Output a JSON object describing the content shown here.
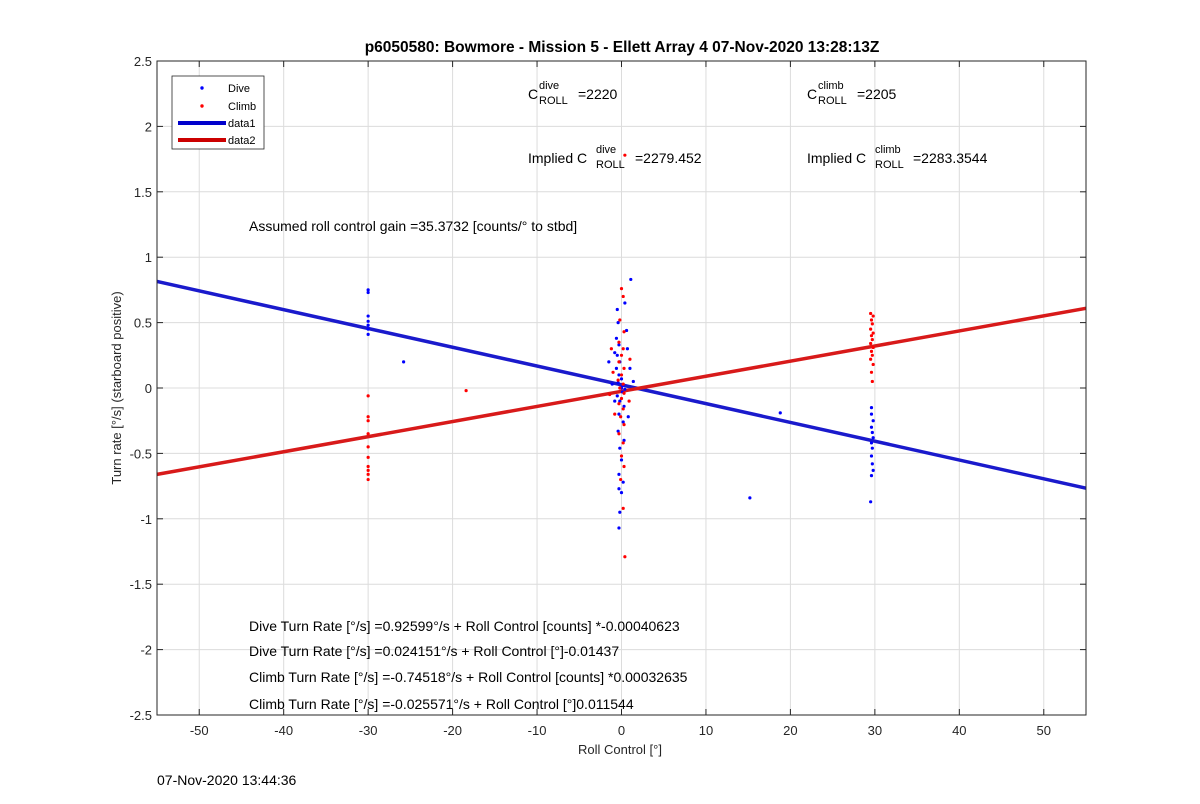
{
  "chart_data": {
    "type": "scatter",
    "title": "p6050580: Bowmore - Mission 5 - Ellett Array 4 07-Nov-2020 13:28:13Z",
    "xlabel": "Roll Control [°]",
    "ylabel": "Turn rate [°/s] (starboard positive)",
    "xlim": [
      -55,
      55
    ],
    "ylim": [
      -2.5,
      2.5
    ],
    "xticks": [
      -50,
      -40,
      -30,
      -20,
      -10,
      0,
      10,
      20,
      30,
      40,
      50
    ],
    "yticks": [
      -2.5,
      -2,
      -1.5,
      -1,
      -0.5,
      0,
      0.5,
      1,
      1.5,
      2,
      2.5
    ],
    "grid": true,
    "legend_position": "top-left",
    "legend": [
      {
        "name": "Dive",
        "kind": "marker",
        "color": "#0000ff"
      },
      {
        "name": "Climb",
        "kind": "marker",
        "color": "#ff0000"
      },
      {
        "name": "data1",
        "kind": "line",
        "color": "#0000cc"
      },
      {
        "name": "data2",
        "kind": "line",
        "color": "#cc0000"
      }
    ],
    "lines": [
      {
        "name": "data1",
        "color": "#1a1acc",
        "slope": -0.01437,
        "intercept": 0.024151
      },
      {
        "name": "data2",
        "color": "#d81a1a",
        "slope": 0.011544,
        "intercept": -0.025571
      }
    ],
    "series": [
      {
        "name": "Dive",
        "color": "#0000ff",
        "points": [
          [
            -30,
            0.75
          ],
          [
            -30,
            0.73
          ],
          [
            -30,
            0.55
          ],
          [
            -30,
            0.51
          ],
          [
            -30,
            0.48
          ],
          [
            -30,
            0.45
          ],
          [
            -30,
            0.41
          ],
          [
            -25.8,
            0.2
          ],
          [
            -0.8,
            0.27
          ],
          [
            -0.5,
            0.6
          ],
          [
            -0.4,
            0.5
          ],
          [
            -0.6,
            0.38
          ],
          [
            -0.3,
            0.33
          ],
          [
            -0.5,
            0.25
          ],
          [
            -0.2,
            0.2
          ],
          [
            -0.6,
            0.15
          ],
          [
            -0.3,
            0.1
          ],
          [
            0,
            0.07
          ],
          [
            -0.4,
            0.04
          ],
          [
            0.2,
            0.02
          ],
          [
            0,
            0
          ],
          [
            0.4,
            -0.01
          ],
          [
            0.1,
            -0.03
          ],
          [
            -0.5,
            -0.06
          ],
          [
            -0.2,
            -0.1
          ],
          [
            0.3,
            -0.14
          ],
          [
            -0.3,
            -0.2
          ],
          [
            0.2,
            -0.26
          ],
          [
            -0.4,
            -0.33
          ],
          [
            0.3,
            -0.4
          ],
          [
            -0.2,
            -0.46
          ],
          [
            0,
            -0.55
          ],
          [
            -0.3,
            -0.66
          ],
          [
            0.2,
            -0.72
          ],
          [
            -0.3,
            -0.77
          ],
          [
            0,
            -0.8
          ],
          [
            -0.2,
            -0.95
          ],
          [
            -0.3,
            -1.07
          ],
          [
            0.4,
            0.65
          ],
          [
            1.1,
            0.83
          ],
          [
            0.6,
            0.44
          ],
          [
            0.7,
            0.3
          ],
          [
            1,
            0.15
          ],
          [
            1.4,
            0.05
          ],
          [
            -1.5,
            0.2
          ],
          [
            -1.1,
            0.03
          ],
          [
            -0.8,
            -0.1
          ],
          [
            0.8,
            -0.22
          ],
          [
            15.2,
            -0.84
          ],
          [
            18.8,
            -0.19
          ],
          [
            29.6,
            -0.15
          ],
          [
            29.6,
            -0.2
          ],
          [
            29.8,
            -0.25
          ],
          [
            29.6,
            -0.3
          ],
          [
            29.7,
            -0.34
          ],
          [
            29.8,
            -0.38
          ],
          [
            29.6,
            -0.42
          ],
          [
            29.7,
            -0.46
          ],
          [
            29.6,
            -0.52
          ],
          [
            29.7,
            -0.58
          ],
          [
            29.8,
            -0.63
          ],
          [
            29.6,
            -0.67
          ],
          [
            29.5,
            -0.87
          ]
        ]
      },
      {
        "name": "Climb",
        "color": "#ff0000",
        "points": [
          [
            -30,
            -0.06
          ],
          [
            -30,
            -0.22
          ],
          [
            -30,
            -0.25
          ],
          [
            -30,
            -0.35
          ],
          [
            -30,
            -0.45
          ],
          [
            -30,
            -0.53
          ],
          [
            -30,
            -0.6
          ],
          [
            -30,
            -0.63
          ],
          [
            -30,
            -0.66
          ],
          [
            -30,
            -0.7
          ],
          [
            -18.4,
            -0.02
          ],
          [
            0,
            0.76
          ],
          [
            0.2,
            0.7
          ],
          [
            -0.2,
            0.52
          ],
          [
            0.3,
            0.43
          ],
          [
            -0.3,
            0.35
          ],
          [
            0.2,
            0.3
          ],
          [
            0,
            0.25
          ],
          [
            -0.3,
            0.2
          ],
          [
            0.3,
            0.15
          ],
          [
            0,
            0.1
          ],
          [
            -0.4,
            0.06
          ],
          [
            0.2,
            0.03
          ],
          [
            -0.2,
            0
          ],
          [
            0.3,
            -0.04
          ],
          [
            0,
            -0.08
          ],
          [
            -0.3,
            -0.12
          ],
          [
            0.2,
            -0.16
          ],
          [
            -0.1,
            -0.22
          ],
          [
            0.3,
            -0.28
          ],
          [
            -0.3,
            -0.35
          ],
          [
            0.2,
            -0.42
          ],
          [
            0,
            -0.52
          ],
          [
            0.3,
            -0.6
          ],
          [
            -0.1,
            -0.7
          ],
          [
            0.2,
            -0.92
          ],
          [
            0.4,
            -1.29
          ],
          [
            0.4,
            1.78
          ],
          [
            -1.2,
            0.3
          ],
          [
            -1,
            0.12
          ],
          [
            -1.4,
            -0.05
          ],
          [
            -0.8,
            -0.2
          ],
          [
            0.9,
            -0.1
          ],
          [
            1,
            0.22
          ],
          [
            29.5,
            0.57
          ],
          [
            29.8,
            0.55
          ],
          [
            29.6,
            0.52
          ],
          [
            29.7,
            0.49
          ],
          [
            29.5,
            0.45
          ],
          [
            29.8,
            0.42
          ],
          [
            29.6,
            0.4
          ],
          [
            29.7,
            0.37
          ],
          [
            29.5,
            0.34
          ],
          [
            29.8,
            0.31
          ],
          [
            29.6,
            0.28
          ],
          [
            29.7,
            0.25
          ],
          [
            29.5,
            0.22
          ],
          [
            29.8,
            0.18
          ],
          [
            29.6,
            0.12
          ],
          [
            29.7,
            0.05
          ]
        ]
      }
    ],
    "annotations": {
      "c_roll_dive_prefix": "C",
      "c_roll_dive_sup": "dive",
      "c_roll_dive_sub": "ROLL",
      "c_roll_dive_value": "=2220",
      "c_roll_climb_prefix": "C",
      "c_roll_climb_sup": "climb",
      "c_roll_climb_sub": "ROLL",
      "c_roll_climb_value": "=2205",
      "implied_dive_prefix": "Implied C",
      "implied_dive_sup": "dive",
      "implied_dive_sub": "ROLL",
      "implied_dive_value": "=2279.452",
      "implied_climb_prefix": "Implied C",
      "implied_climb_sup": "climb",
      "implied_climb_sub": "ROLL",
      "implied_climb_value": "=2283.3544",
      "gain": "Assumed roll control gain =35.3732 [counts/° to stbd]",
      "eq1": "Dive Turn Rate [°/s] =0.92599°/s + Roll Control [counts] *-0.00040623",
      "eq2": "Dive Turn Rate [°/s] =0.024151°/s + Roll Control [°]-0.01437",
      "eq3": "Climb Turn Rate [°/s] =-0.74518°/s + Roll Control [counts] *0.00032635",
      "eq4": "Climb Turn Rate [°/s] =-0.025571°/s + Roll Control [°]0.011544"
    }
  },
  "footer": {
    "timestamp": "07-Nov-2020 13:44:36"
  }
}
